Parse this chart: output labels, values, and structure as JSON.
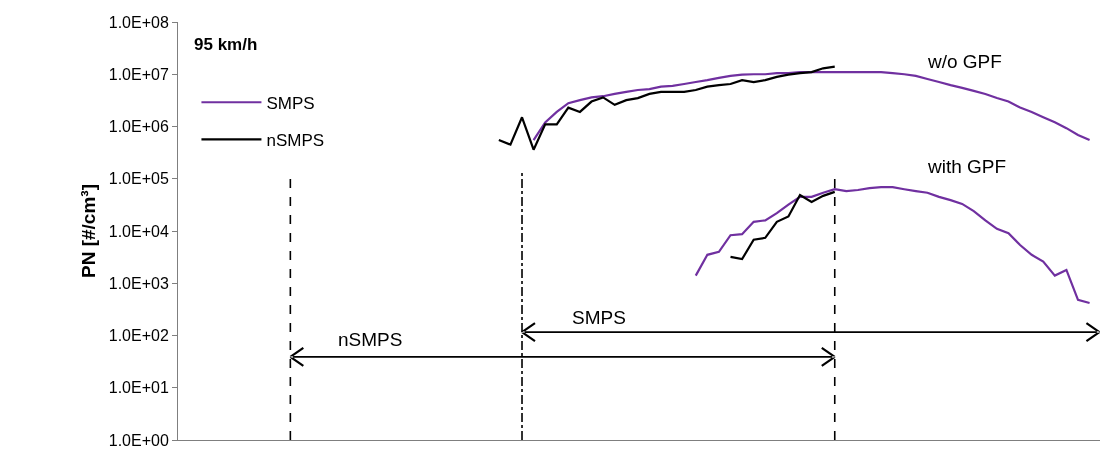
{
  "chart_data": {
    "type": "line",
    "ylabel": "PN [#/cm³]",
    "categories": [
      null,
      null,
      null,
      null,
      null,
      null,
      null,
      null,
      null,
      null,
      null,
      null,
      null,
      null,
      null,
      null,
      null,
      null,
      null,
      null,
      null,
      null,
      null,
      null,
      null,
      null,
      null,
      null,
      null,
      null,
      null,
      null,
      null,
      null,
      null,
      null,
      null,
      null,
      null,
      null,
      null,
      null,
      null,
      null,
      null,
      null,
      null,
      null,
      null,
      null,
      null,
      null,
      null,
      null,
      null,
      null,
      null,
      null,
      null,
      null,
      null,
      null,
      null,
      null,
      null,
      null,
      null,
      null,
      null,
      null,
      null,
      null,
      null,
      null,
      null,
      null,
      null,
      null,
      null,
      null
    ],
    "series": [
      {
        "name": "SMPS",
        "color": "#7030a0",
        "values": [
          null,
          null,
          null,
          null,
          null,
          null,
          null,
          null,
          null,
          null,
          null,
          null,
          null,
          null,
          null,
          null,
          null,
          null,
          null,
          null,
          null,
          null,
          null,
          null,
          null,
          null,
          null,
          null,
          null,
          null,
          null,
          550000.0,
          1200000.0,
          1900000.0,
          2800000.0,
          3200000.0,
          3600000.0,
          3800000.0,
          4200000.0,
          4600000.0,
          5000000.0,
          5200000.0,
          5800000.0,
          6000000.0,
          6500000.0,
          7100000.0,
          7700000.0,
          8500000.0,
          9300000.0,
          9800000.0,
          10000000.0,
          10000000.0,
          10500000.0,
          10500000.0,
          11000000.0,
          11000000.0,
          11000000.0,
          11000000.0,
          11000000.0,
          11000000.0,
          11000000.0,
          11000000.0,
          10500000.0,
          10000000.0,
          9300000.0,
          8100000.0,
          7100000.0,
          6200000.0,
          5500000.0,
          4800000.0,
          4200000.0,
          3500000.0,
          3000000.0,
          2300000.0,
          1900000.0,
          1500000.0,
          1200000.0,
          930000.0,
          690000.0,
          550000.0
        ]
      },
      {
        "name": "nSMPS",
        "color": "#000000",
        "values": [
          null,
          null,
          null,
          null,
          null,
          null,
          null,
          null,
          null,
          null,
          null,
          null,
          null,
          null,
          null,
          null,
          null,
          null,
          null,
          null,
          null,
          null,
          null,
          null,
          null,
          null,
          null,
          null,
          550000.0,
          450000.0,
          1500000.0,
          360000.0,
          1100000.0,
          1100000.0,
          2300000.0,
          1900000.0,
          3000000.0,
          3600000.0,
          2600000.0,
          3200000.0,
          3500000.0,
          4200000.0,
          4600000.0,
          4600000.0,
          4600000.0,
          5000000.0,
          5800000.0,
          6200000.0,
          6500000.0,
          7700000.0,
          7100000.0,
          7700000.0,
          8900000.0,
          9800000.0,
          10500000.0,
          11000000.0,
          13000000.0,
          14000000.0,
          null,
          null,
          null,
          null,
          null,
          null,
          null,
          null,
          null,
          null,
          null,
          null,
          null,
          null,
          null,
          null,
          null,
          null,
          null,
          null,
          null,
          null
        ]
      },
      {
        "color": "#7030a0",
        "values": [
          null,
          null,
          null,
          null,
          null,
          null,
          null,
          null,
          null,
          null,
          null,
          null,
          null,
          null,
          null,
          null,
          null,
          null,
          null,
          null,
          null,
          null,
          null,
          null,
          null,
          null,
          null,
          null,
          null,
          null,
          null,
          null,
          null,
          null,
          null,
          null,
          null,
          null,
          null,
          null,
          null,
          null,
          null,
          null,
          null,
          1400.0,
          3500.0,
          4000.0,
          8300.0,
          8700.0,
          15000.0,
          16000.0,
          22000.0,
          32000.0,
          45000.0,
          45000.0,
          54000.0,
          63000.0,
          58000.0,
          61000.0,
          66000.0,
          69000.0,
          69000.0,
          63000.0,
          58000.0,
          54000.0,
          45000.0,
          39000.0,
          33000.0,
          24000.0,
          16000.0,
          11000.0,
          9100.0,
          5400.0,
          3500.0,
          2600.0,
          1400.0,
          1800.0,
          480.0,
          420.0
        ]
      },
      {
        "color": "#000000",
        "values": [
          null,
          null,
          null,
          null,
          null,
          null,
          null,
          null,
          null,
          null,
          null,
          null,
          null,
          null,
          null,
          null,
          null,
          null,
          null,
          null,
          null,
          null,
          null,
          null,
          null,
          null,
          null,
          null,
          null,
          null,
          null,
          null,
          null,
          null,
          null,
          null,
          null,
          null,
          null,
          null,
          null,
          null,
          null,
          null,
          null,
          null,
          null,
          null,
          3200.0,
          2900.0,
          6800.0,
          7400.0,
          15000.0,
          19000.0,
          49000.0,
          36000.0,
          47000.0,
          56000.0,
          null,
          null,
          null,
          null,
          null,
          null,
          null,
          null,
          null,
          null,
          null,
          null,
          null,
          null,
          null,
          null,
          null,
          null,
          null,
          null,
          null,
          null
        ]
      }
    ],
    "log": "y",
    "ylim": [
      1,
      100000000.0
    ],
    "yticks": [
      {
        "value": 1,
        "label": "1.0E+00"
      },
      {
        "value": 10,
        "label": "1.0E+01"
      },
      {
        "value": 100,
        "label": "1.0E+02"
      },
      {
        "value": 1000,
        "label": "1.0E+03"
      },
      {
        "value": 10000,
        "label": "1.0E+04"
      },
      {
        "value": 100000,
        "label": "1.0E+05"
      },
      {
        "value": 1000000,
        "label": "1.0E+06"
      },
      {
        "value": 10000000,
        "label": "1.0E+07"
      },
      {
        "value": 100000000,
        "label": "1.0E+08"
      }
    ],
    "tick_labels": "y",
    "legend": "top left",
    "line_style": "solid",
    "marker": "none",
    "annotations": [
      "95 km/h",
      "w/o GPF",
      "with GPF",
      "nSMPS",
      "SMPS"
    ]
  }
}
